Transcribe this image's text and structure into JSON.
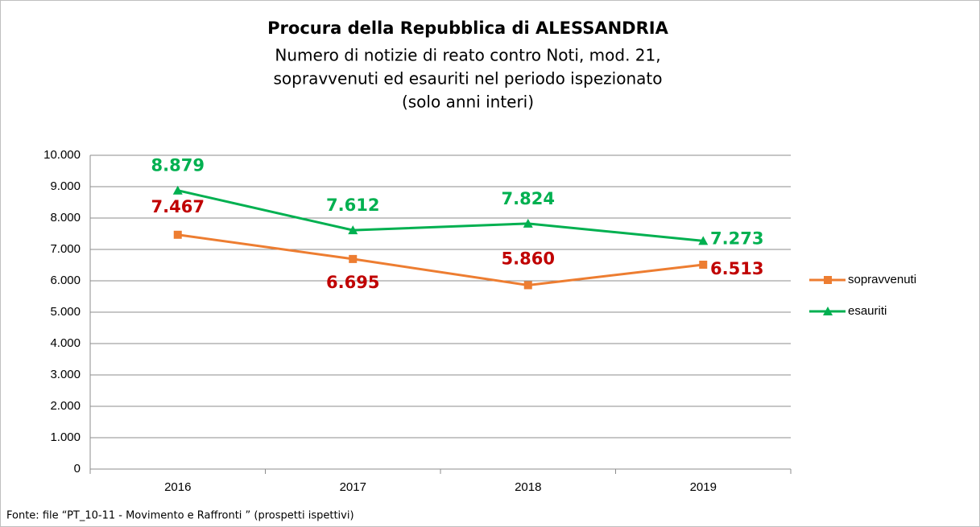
{
  "chart_data": {
    "type": "line",
    "title": "Procura della Repubblica di ALESSANDRIA",
    "subtitle": [
      "Numero di notizie di reato contro Noti, mod. 21,",
      "sopravvenuti ed esauriti nel periodo ispezionato",
      "(solo anni interi)"
    ],
    "source": "Fonte: file “PT_10-11 - Movimento e Raffronti ” (prospetti ispettivi)",
    "categories": [
      "2016",
      "2017",
      "2018",
      "2019"
    ],
    "series": [
      {
        "name": "sopravvenuti",
        "color": "#ed7d31",
        "label_color": "#c00000",
        "marker": "square",
        "values": [
          7467,
          6695,
          5860,
          6513
        ],
        "value_labels": [
          "7.467",
          "6.695",
          "5.860",
          "6.513"
        ]
      },
      {
        "name": "esauriti",
        "color": "#00b050",
        "label_color": "#00b050",
        "marker": "triangle",
        "values": [
          8879,
          7612,
          7824,
          7273
        ],
        "value_labels": [
          "8.879",
          "7.612",
          "7.824",
          "7.273"
        ]
      }
    ],
    "ylim": [
      0,
      10000
    ],
    "yticks": [
      0,
      {
        "value": 1000,
        "label": "1.000"
      },
      {
        "value": 2000,
        "label": "2.000"
      },
      {
        "value": 3000,
        "label": "3.000"
      },
      {
        "value": 4000,
        "label": "4.000"
      },
      {
        "value": 5000,
        "label": "5.000"
      },
      {
        "value": 6000,
        "label": "6.000"
      },
      {
        "value": 7000,
        "label": "7.000"
      },
      {
        "value": 8000,
        "label": "8.000"
      },
      {
        "value": 9000,
        "label": "9.000"
      },
      {
        "value": 10000,
        "label": "10.000"
      }
    ],
    "grid": true,
    "legend": "right"
  }
}
